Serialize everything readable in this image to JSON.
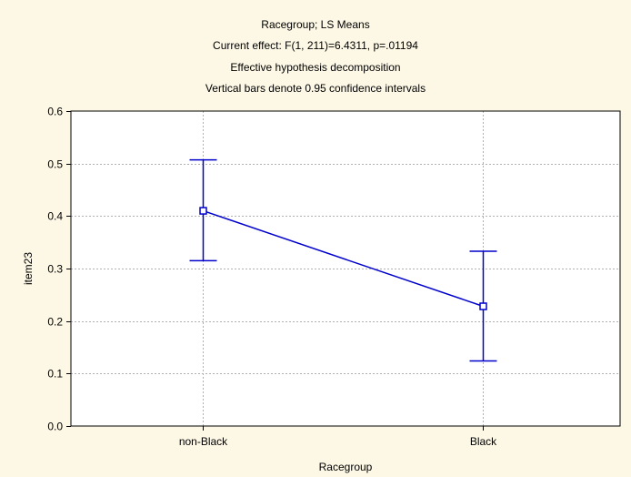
{
  "chart_data": {
    "type": "line",
    "title_lines": [
      "Racegroup; LS Means",
      "Current effect: F(1, 211)=6.4311, p=.01194",
      "Effective hypothesis decomposition",
      "Vertical bars denote 0.95 confidence intervals"
    ],
    "xlabel": "Racegroup",
    "ylabel": "item23",
    "categories": [
      "non-Black",
      "Black"
    ],
    "series": [
      {
        "values": [
          0.41,
          0.228
        ],
        "ci_lower": [
          0.315,
          0.124
        ],
        "ci_upper": [
          0.507,
          0.333
        ],
        "color": "#0000cc"
      }
    ],
    "ylim": [
      0.0,
      0.6
    ],
    "yticks": [
      "0.0",
      "0.1",
      "0.2",
      "0.3",
      "0.4",
      "0.5",
      "0.6"
    ],
    "grid": true,
    "background_color": "#fdf8e6",
    "plot_background_color": "#ffffff",
    "gridline_color": "#b0b0b0"
  }
}
